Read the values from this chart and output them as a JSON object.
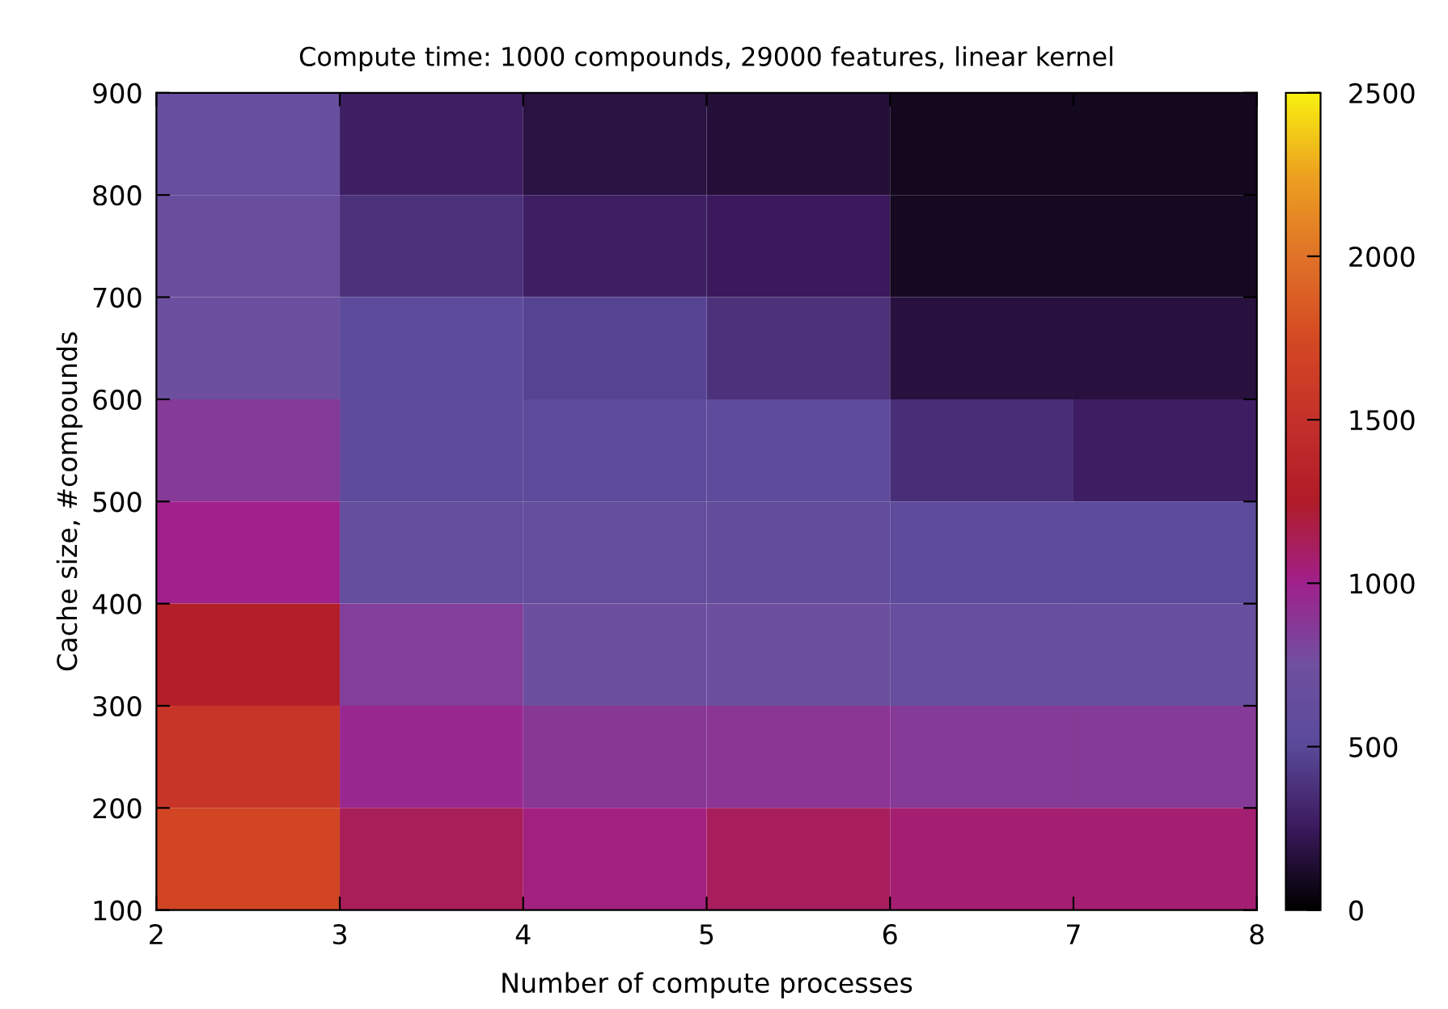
{
  "chart_data": {
    "type": "heatmap",
    "title": "Compute time: 1000 compounds, 29000 features, linear kernel",
    "xlabel": "Number of compute processes",
    "ylabel": "Cache size, #compounds",
    "xlim": [
      2,
      8
    ],
    "xticks": [
      2,
      3,
      4,
      5,
      6,
      7,
      8
    ],
    "ylim": [
      100,
      900
    ],
    "yticks": [
      100,
      200,
      300,
      400,
      500,
      600,
      700,
      800,
      900
    ],
    "cells": [
      [
        650,
        280,
        180,
        150,
        80,
        80
      ],
      [
        680,
        380,
        280,
        250,
        90,
        90
      ],
      [
        720,
        540,
        470,
        380,
        170,
        170
      ],
      [
        860,
        560,
        560,
        560,
        360,
        270
      ],
      [
        1000,
        620,
        620,
        600,
        560,
        520
      ],
      [
        1280,
        840,
        720,
        720,
        650,
        650
      ],
      [
        1550,
        960,
        880,
        890,
        860,
        860
      ],
      [
        1700,
        1130,
        1030,
        1120,
        1070,
        1070
      ]
    ],
    "clim": [
      0,
      2500
    ],
    "cticks": [
      0,
      500,
      1000,
      1500,
      2000,
      2500
    ],
    "colors": [
      "#000000",
      "#3c1a5e",
      "#5a4a9a",
      "#7050a0",
      "#a0208c",
      "#b01c28",
      "#c4302a",
      "#d44a22",
      "#e07228",
      "#eca020",
      "#f8f010"
    ],
    "grid": false
  }
}
